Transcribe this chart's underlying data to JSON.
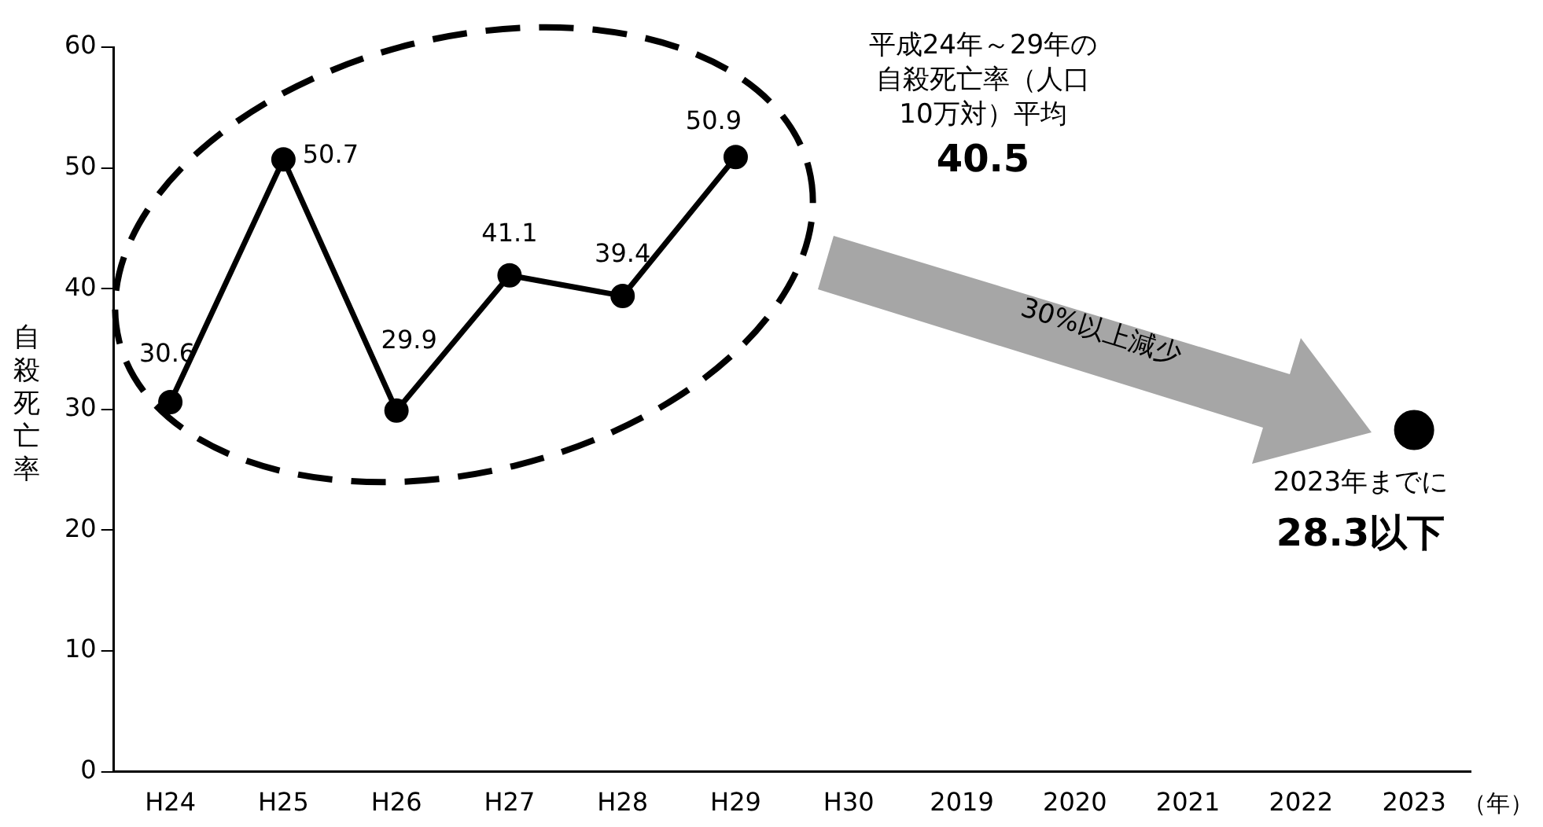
{
  "chart_data": {
    "type": "line",
    "categories": [
      "H24",
      "H25",
      "H26",
      "H27",
      "H28",
      "H29",
      "H30",
      "2019",
      "2020",
      "2021",
      "2022",
      "2023"
    ],
    "series": [
      {
        "type": "line",
        "color": "#000000",
        "marker": "circle",
        "values": [
          30.6,
          50.7,
          29.9,
          41.1,
          39.4,
          50.9,
          null,
          null,
          null,
          null,
          null,
          null
        ],
        "value_labels": [
          "30.6",
          "50.7",
          "29.9",
          "41.1",
          "39.4",
          "50.9",
          null,
          null,
          null,
          null,
          null,
          null
        ]
      },
      {
        "type": "scatter",
        "color": "#000000",
        "marker": "circle",
        "values": [
          null,
          null,
          null,
          null,
          null,
          null,
          null,
          null,
          null,
          null,
          null,
          28.3
        ]
      }
    ],
    "ylim": [
      0,
      60
    ],
    "yticks": [
      0,
      10,
      20,
      30,
      40,
      50,
      60
    ],
    "ylabel": "自殺死亡率",
    "xlabel": "（年）",
    "grid": false,
    "legend": false,
    "annotations": [
      "平成24年～29年の自殺死亡率（人口10万対）平均",
      "40.5",
      "30%以上減少",
      "2023年までに",
      "28.3以下"
    ]
  }
}
